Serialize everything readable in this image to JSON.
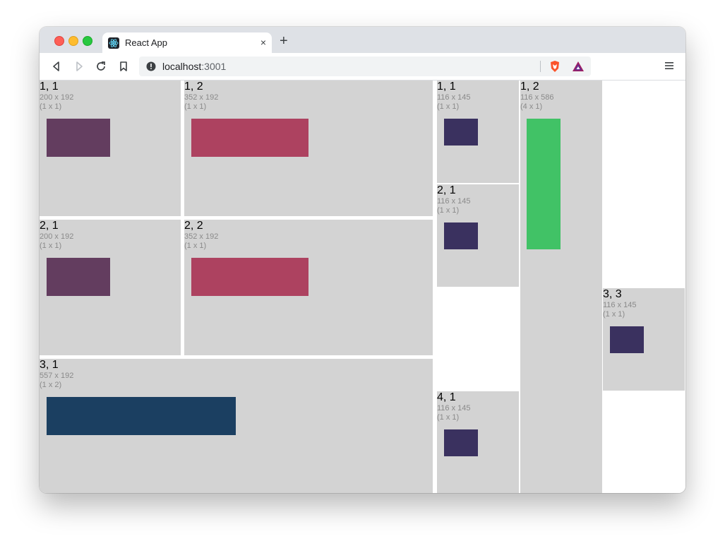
{
  "browser": {
    "tab_title": "React App",
    "tab_close": "×",
    "new_tab": "+",
    "url_host": "localhost",
    "url_port": ":3001"
  },
  "colors": {
    "purple": "#633d5f",
    "pink": "#ad4260",
    "navy": "#3a315f",
    "green": "#41c266",
    "darkblue": "#1b3f61",
    "cell_bg": "#d3d3d3"
  },
  "grid_a": {
    "cells": [
      {
        "pos": "1, 1",
        "size": "200 x 192",
        "span": "(1 x 1)",
        "color": "#633d5f"
      },
      {
        "pos": "1, 2",
        "size": "352 x 192",
        "span": "(1 x 1)",
        "color": "#ad4260"
      },
      {
        "pos": "2, 1",
        "size": "200 x 192",
        "span": "(1 x 1)",
        "color": "#633d5f"
      },
      {
        "pos": "2, 2",
        "size": "352 x 192",
        "span": "(1 x 1)",
        "color": "#ad4260"
      },
      {
        "pos": "3, 1",
        "size": "557 x 192",
        "span": "(1 x 2)",
        "color": "#1b3f61"
      }
    ]
  },
  "grid_b": {
    "cells": [
      {
        "pos": "1, 1",
        "size": "116 x 145",
        "span": "(1 x 1)",
        "color": "#3a315f"
      },
      {
        "pos": "2, 1",
        "size": "116 x 145",
        "span": "(1 x 1)",
        "color": "#3a315f"
      },
      {
        "pos": "4, 1",
        "size": "116 x 145",
        "span": "(1 x 1)",
        "color": "#3a315f"
      },
      {
        "pos": "1, 2",
        "size": "116 x 586",
        "span": "(4 x 1)",
        "color": "#41c266"
      },
      {
        "pos": "3, 3",
        "size": "116 x 145",
        "span": "(1 x 1)",
        "color": "#3a315f"
      }
    ]
  }
}
